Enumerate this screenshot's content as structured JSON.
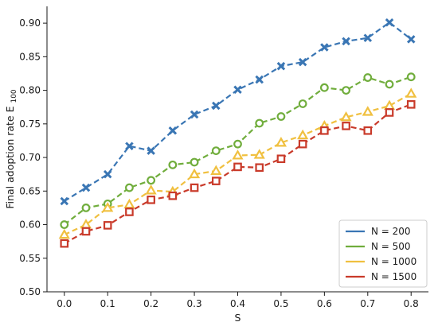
{
  "chart_data": {
    "type": "line",
    "title": "",
    "xlabel": "S",
    "ylabel_main": "Final adoption rate E",
    "ylabel_sub": "100",
    "xlim": [
      -0.04,
      0.84
    ],
    "ylim": [
      0.5,
      0.925
    ],
    "xticks": [
      0.0,
      0.1,
      0.2,
      0.3,
      0.4,
      0.5,
      0.6,
      0.7,
      0.8
    ],
    "xtick_labels": [
      "0.0",
      "0.1",
      "0.2",
      "0.3",
      "0.4",
      "0.5",
      "0.6",
      "0.7",
      "0.8"
    ],
    "yticks": [
      0.5,
      0.55,
      0.6,
      0.65,
      0.7,
      0.75,
      0.8,
      0.85,
      0.9
    ],
    "ytick_labels": [
      "0.50",
      "0.55",
      "0.60",
      "0.65",
      "0.70",
      "0.75",
      "0.80",
      "0.85",
      "0.90"
    ],
    "grid": false,
    "legend_position": "bottom-right",
    "x": [
      0.0,
      0.05,
      0.1,
      0.15,
      0.2,
      0.25,
      0.3,
      0.35,
      0.4,
      0.45,
      0.5,
      0.55,
      0.6,
      0.65,
      0.7,
      0.75,
      0.8
    ],
    "series": [
      {
        "name": "N = 200",
        "color": "#3a76b4",
        "marker": "x",
        "values": [
          0.635,
          0.655,
          0.675,
          0.717,
          0.71,
          0.74,
          0.764,
          0.777,
          0.801,
          0.816,
          0.836,
          0.842,
          0.864,
          0.873,
          0.878,
          0.901,
          0.876
        ]
      },
      {
        "name": "N = 500",
        "color": "#70ad3c",
        "marker": "circle",
        "values": [
          0.6,
          0.625,
          0.631,
          0.655,
          0.666,
          0.689,
          0.693,
          0.71,
          0.72,
          0.751,
          0.761,
          0.78,
          0.804,
          0.8,
          0.819,
          0.809,
          0.82
        ]
      },
      {
        "name": "N = 1000",
        "color": "#f0c040",
        "marker": "triangle",
        "values": [
          0.585,
          0.6,
          0.625,
          0.63,
          0.651,
          0.649,
          0.675,
          0.68,
          0.703,
          0.704,
          0.722,
          0.733,
          0.747,
          0.76,
          0.768,
          0.777,
          0.795
        ]
      },
      {
        "name": "N = 1500",
        "color": "#c93a2a",
        "marker": "square",
        "values": [
          0.572,
          0.59,
          0.599,
          0.619,
          0.637,
          0.643,
          0.655,
          0.665,
          0.686,
          0.685,
          0.698,
          0.72,
          0.74,
          0.747,
          0.74,
          0.767,
          0.779
        ]
      }
    ]
  }
}
